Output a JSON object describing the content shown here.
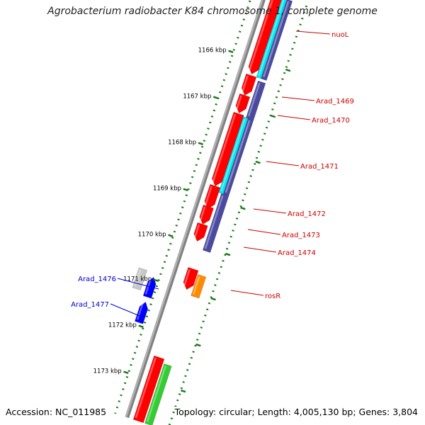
{
  "title": "Agrobacterium radiobacter K84 chromosome 1, complete genome",
  "accession": "Accession: NC_011985",
  "summary": "Topology: circular; Length: 4,005,130 bp; Genes: 3,804",
  "colors": {
    "backbone": "#808080",
    "ruler": "#1a7a1a",
    "cds_forward": "#ff0000",
    "cds_reverse": "#0000ff",
    "rna": "#ff8c00",
    "gene_light": "#c8c8c8",
    "green_track": "#33cc33",
    "cyan_track": "#00e5ee",
    "purple_track": "#4b4aa0",
    "label_red": "#cc0000",
    "label_blue": "#0000cc"
  },
  "ruler": {
    "ticks": [
      {
        "label": "1166 kbp"
      },
      {
        "label": "1167 kbp"
      },
      {
        "label": "1168 kbp"
      },
      {
        "label": "1169 kbp"
      },
      {
        "label": "1170 kbp"
      },
      {
        "label": "1171 kbp"
      },
      {
        "label": "1172 kbp"
      },
      {
        "label": "1173 kbp"
      }
    ]
  },
  "gene_labels": [
    {
      "text": "nuoL",
      "color": "red"
    },
    {
      "text": "Arad_1469",
      "color": "red"
    },
    {
      "text": "Arad_1470",
      "color": "red"
    },
    {
      "text": "Arad_1471",
      "color": "red"
    },
    {
      "text": "Arad_1472",
      "color": "red"
    },
    {
      "text": "Arad_1473",
      "color": "red"
    },
    {
      "text": "Arad_1474",
      "color": "red"
    },
    {
      "text": "rosR",
      "color": "red"
    },
    {
      "text": "Arad_1476",
      "color": "blue"
    },
    {
      "text": "Arad_1477",
      "color": "blue"
    }
  ]
}
